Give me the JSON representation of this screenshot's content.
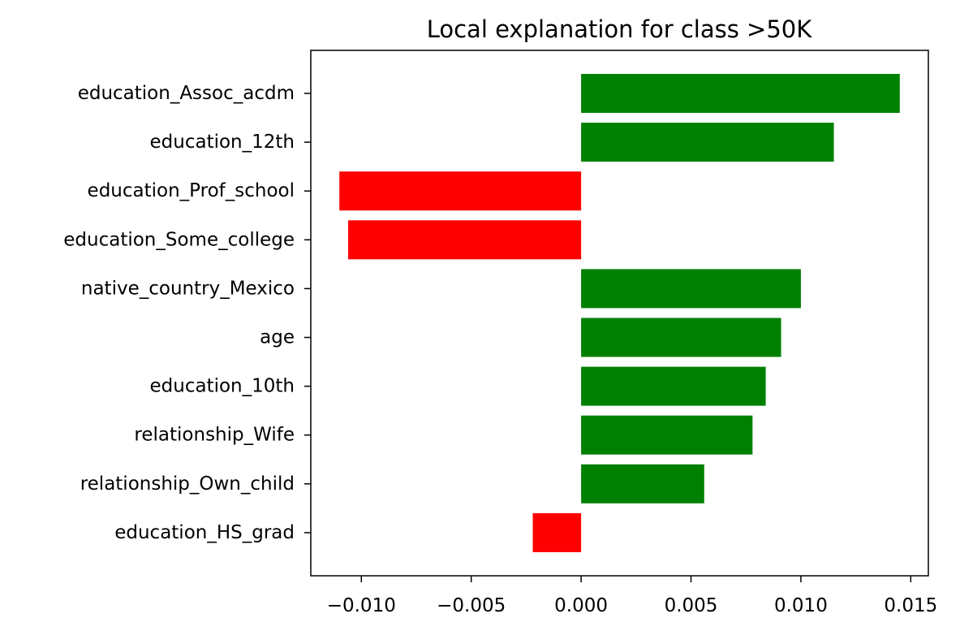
{
  "chart_data": {
    "type": "bar",
    "orientation": "horizontal",
    "title": "Local explanation for class >50K",
    "xlabel": "",
    "ylabel": "",
    "categories": [
      "education_Assoc_acdm",
      "education_12th",
      "education_Prof_school",
      "education_Some_college",
      "native_country_Mexico",
      "age",
      "education_10th",
      "relationship_Wife",
      "relationship_Own_child",
      "education_HS_grad"
    ],
    "values": [
      0.0145,
      0.0115,
      -0.011,
      -0.0106,
      0.01,
      0.0091,
      0.0084,
      0.0078,
      0.0056,
      -0.0022
    ],
    "xlim": [
      -0.0123,
      0.0158
    ],
    "xticks": [
      -0.01,
      -0.005,
      0.0,
      0.005,
      0.01,
      0.015
    ],
    "xtick_labels": [
      "−0.010",
      "−0.005",
      "0.000",
      "0.005",
      "0.010",
      "0.015"
    ],
    "positive_color": "#008000",
    "negative_color": "#ff0000",
    "grid": false,
    "legend": "none"
  }
}
